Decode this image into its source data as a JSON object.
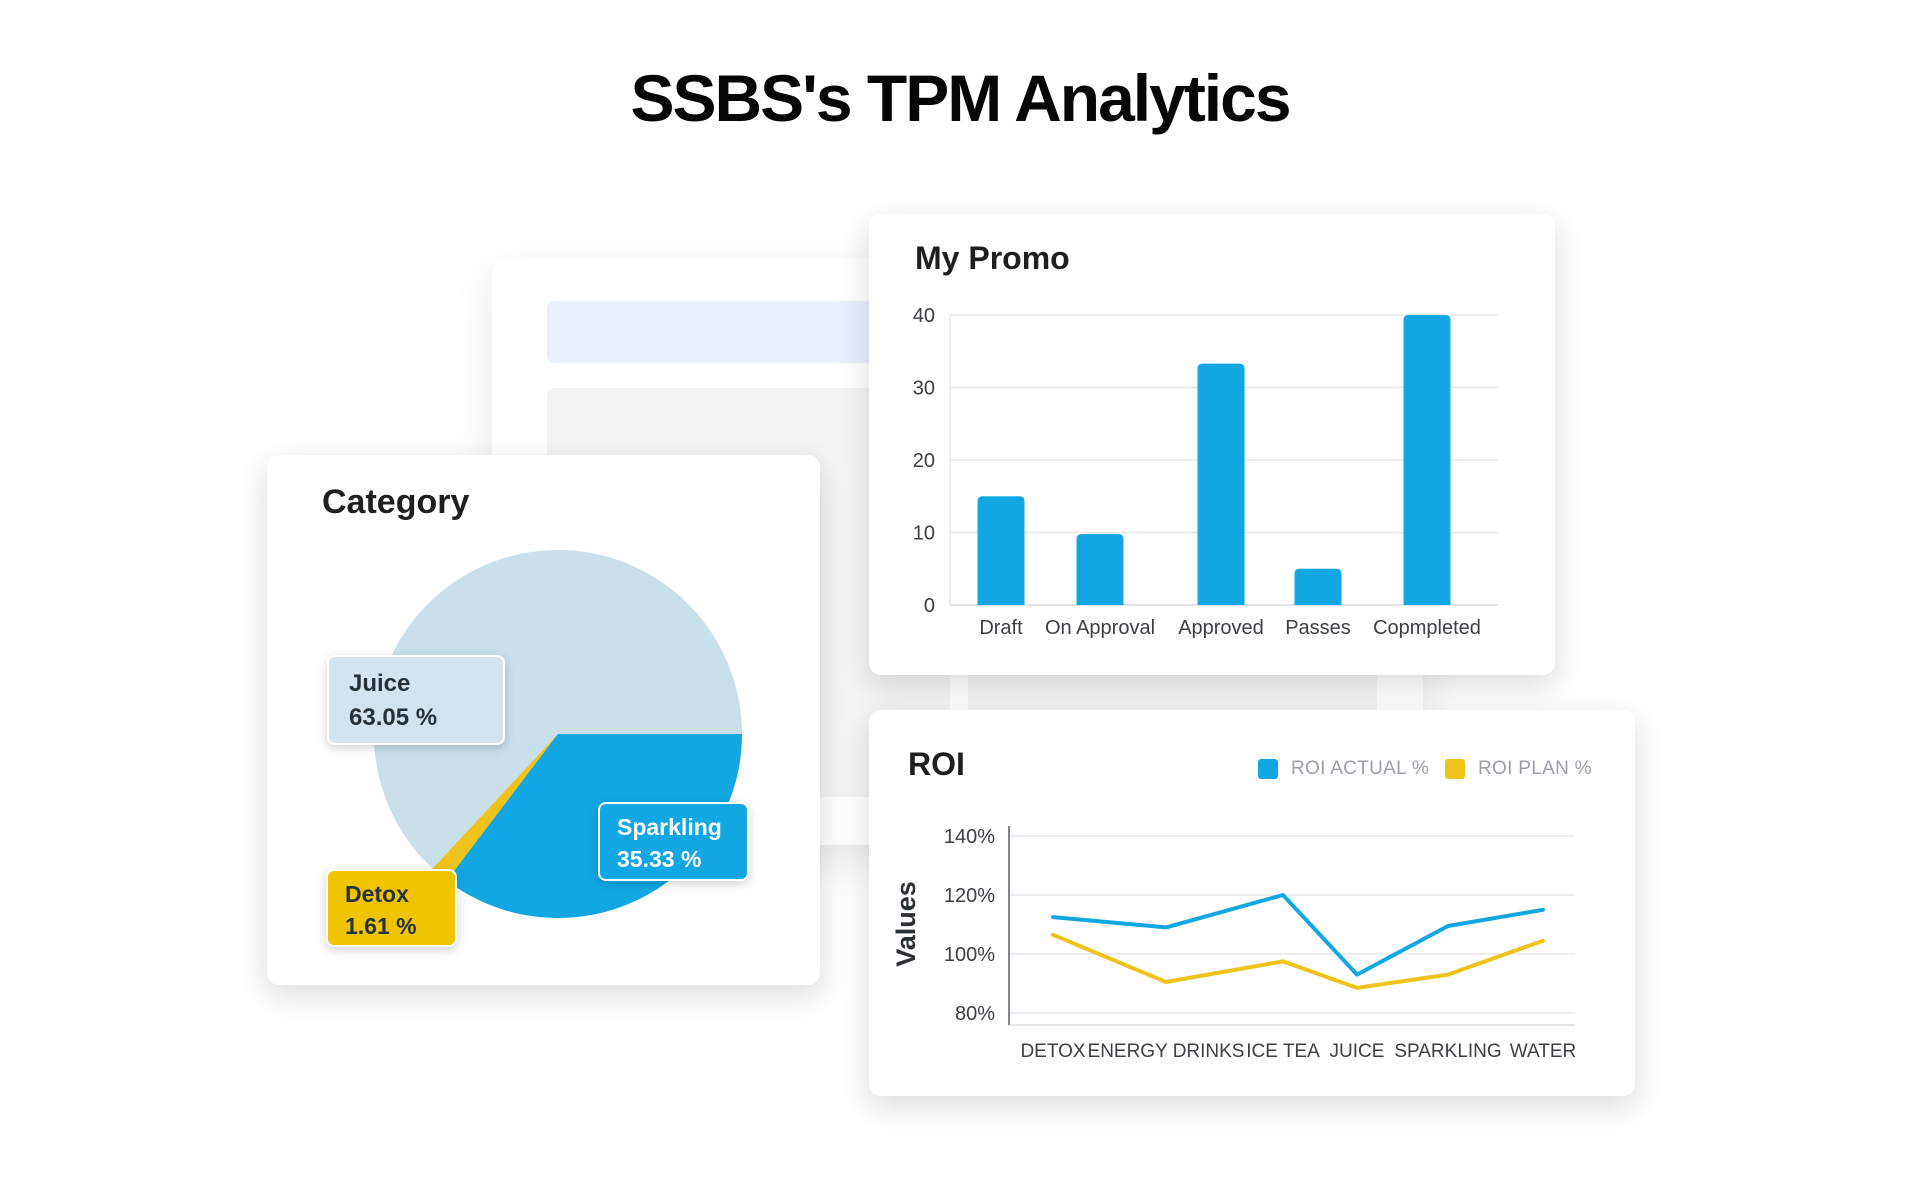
{
  "page": {
    "title": "SSBS's TPM Analytics"
  },
  "cards": {
    "promo": {
      "title": "My Promo"
    },
    "category": {
      "title": "Category"
    },
    "roi": {
      "title": "ROI",
      "ylabel": "Values"
    }
  },
  "colors": {
    "accent_blue": "#12A7E3",
    "accent_yellow": "#EFC319",
    "pie_pale_blue": "#C9DFEA",
    "juice_label_bg": "#D4E4EE",
    "sparkling_label_bg": "#12A7E3",
    "detox_label_bg": "#F0C400",
    "ghost_row_blue": "#E9EEFC",
    "ghost_block_gray": "#F4F4F4"
  },
  "chart_data": [
    {
      "type": "bar",
      "title": "My Promo",
      "categories": [
        "Draft",
        "On Approval",
        "Approved",
        "Passes",
        "Copmpleted"
      ],
      "values": [
        15,
        9.8,
        33.3,
        5,
        40
      ],
      "xlabel": "",
      "ylabel": "",
      "ylim": [
        0,
        40
      ],
      "yticks": [
        0,
        10,
        20,
        30,
        40
      ],
      "grid": true,
      "legend": "none",
      "color": "#12A7E3"
    },
    {
      "type": "pie",
      "title": "Category",
      "direction": "clockwise",
      "start": "east",
      "slices": [
        {
          "label": "Sparkling",
          "pct": 35.33,
          "display": "35.33 %",
          "color": "#12A7E3"
        },
        {
          "label": "Detox",
          "pct": 1.61,
          "display": "1.61 %",
          "color": "#EFC319"
        },
        {
          "label": "Juice",
          "pct": 63.05,
          "display": "63.05 %",
          "color": "#C9DFEA"
        }
      ]
    },
    {
      "type": "line",
      "title": "ROI",
      "categories": [
        "DETOX",
        "ENERGY DRINKS",
        "ICE TEA",
        "JUICE",
        "SPARKLING",
        "WATER"
      ],
      "xlabel": "",
      "ylabel": "Values",
      "ylim": [
        80,
        140
      ],
      "yticks": [
        140,
        120,
        100,
        80
      ],
      "ytick_suffix": "%",
      "grid": true,
      "legend_position": "top-right",
      "series": [
        {
          "name": "ROI ACTUAL %",
          "color": "#12A7E3",
          "values": [
            112.5,
            109,
            120,
            93,
            109.5,
            115
          ]
        },
        {
          "name": "ROI PLAN %",
          "color": "#EFC319",
          "values": [
            106.5,
            90.5,
            97.5,
            88.5,
            93,
            104.5
          ]
        }
      ]
    }
  ]
}
